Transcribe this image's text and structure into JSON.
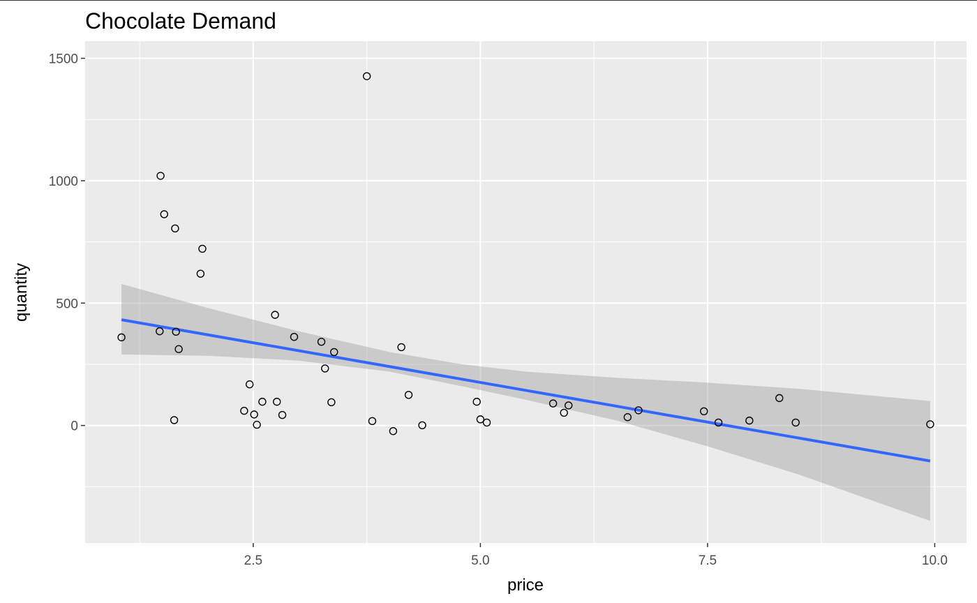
{
  "chart_data": {
    "type": "scatter",
    "title": "Chocolate Demand",
    "xlabel": "price",
    "ylabel": "quantity",
    "xlim": [
      0.65,
      10.35
    ],
    "ylim": [
      -480,
      1570
    ],
    "x_ticks": [
      2.5,
      5.0,
      7.5,
      10.0
    ],
    "x_tick_labels": [
      "2.5",
      "5.0",
      "7.5",
      "10.0"
    ],
    "x_minor_ticks": [
      1.25,
      3.75,
      6.25,
      8.75
    ],
    "y_ticks": [
      0,
      500,
      1000,
      1500
    ],
    "y_tick_labels": [
      "0",
      "500",
      "1000",
      "1500"
    ],
    "y_minor_ticks": [
      -250,
      250,
      750,
      1250
    ],
    "grid": true,
    "legend": "none",
    "colors": {
      "panel": "#ebebeb",
      "grid": "#ffffff",
      "point_stroke": "#000000",
      "fit_line": "#3366ff",
      "ribbon": "#999999"
    },
    "points": [
      {
        "x": 1.05,
        "y": 360
      },
      {
        "x": 1.47,
        "y": 385
      },
      {
        "x": 1.48,
        "y": 1020
      },
      {
        "x": 1.52,
        "y": 863
      },
      {
        "x": 1.63,
        "y": 22
      },
      {
        "x": 1.64,
        "y": 805
      },
      {
        "x": 1.65,
        "y": 383
      },
      {
        "x": 1.68,
        "y": 312
      },
      {
        "x": 1.92,
        "y": 620
      },
      {
        "x": 1.94,
        "y": 722
      },
      {
        "x": 2.4,
        "y": 60
      },
      {
        "x": 2.46,
        "y": 168
      },
      {
        "x": 2.51,
        "y": 45
      },
      {
        "x": 2.54,
        "y": 3
      },
      {
        "x": 2.6,
        "y": 97
      },
      {
        "x": 2.74,
        "y": 452
      },
      {
        "x": 2.76,
        "y": 97
      },
      {
        "x": 2.82,
        "y": 43
      },
      {
        "x": 2.95,
        "y": 362
      },
      {
        "x": 3.25,
        "y": 342
      },
      {
        "x": 3.29,
        "y": 233
      },
      {
        "x": 3.36,
        "y": 95
      },
      {
        "x": 3.39,
        "y": 300
      },
      {
        "x": 3.75,
        "y": 1427
      },
      {
        "x": 3.81,
        "y": 18
      },
      {
        "x": 4.04,
        "y": -23
      },
      {
        "x": 4.13,
        "y": 320
      },
      {
        "x": 4.21,
        "y": 125
      },
      {
        "x": 4.36,
        "y": 1
      },
      {
        "x": 4.96,
        "y": 97
      },
      {
        "x": 5.0,
        "y": 25
      },
      {
        "x": 5.07,
        "y": 12
      },
      {
        "x": 5.8,
        "y": 90
      },
      {
        "x": 5.92,
        "y": 52
      },
      {
        "x": 5.97,
        "y": 82
      },
      {
        "x": 6.62,
        "y": 34
      },
      {
        "x": 6.74,
        "y": 62
      },
      {
        "x": 7.46,
        "y": 58
      },
      {
        "x": 7.62,
        "y": 12
      },
      {
        "x": 7.96,
        "y": 20
      },
      {
        "x": 8.29,
        "y": 112
      },
      {
        "x": 8.47,
        "y": 12
      },
      {
        "x": 9.95,
        "y": 5
      }
    ],
    "fit_line": {
      "x": [
        1.05,
        9.95
      ],
      "y": [
        432,
        -145
      ]
    },
    "confidence_band": {
      "x": [
        1.05,
        2.0,
        3.0,
        4.0,
        4.8,
        5.5,
        6.5,
        7.5,
        8.5,
        9.95
      ],
      "upper": [
        578,
        480,
        385,
        300,
        250,
        220,
        195,
        175,
        150,
        100
      ],
      "lower": [
        290,
        285,
        265,
        220,
        160,
        105,
        20,
        -85,
        -200,
        -390
      ]
    }
  }
}
